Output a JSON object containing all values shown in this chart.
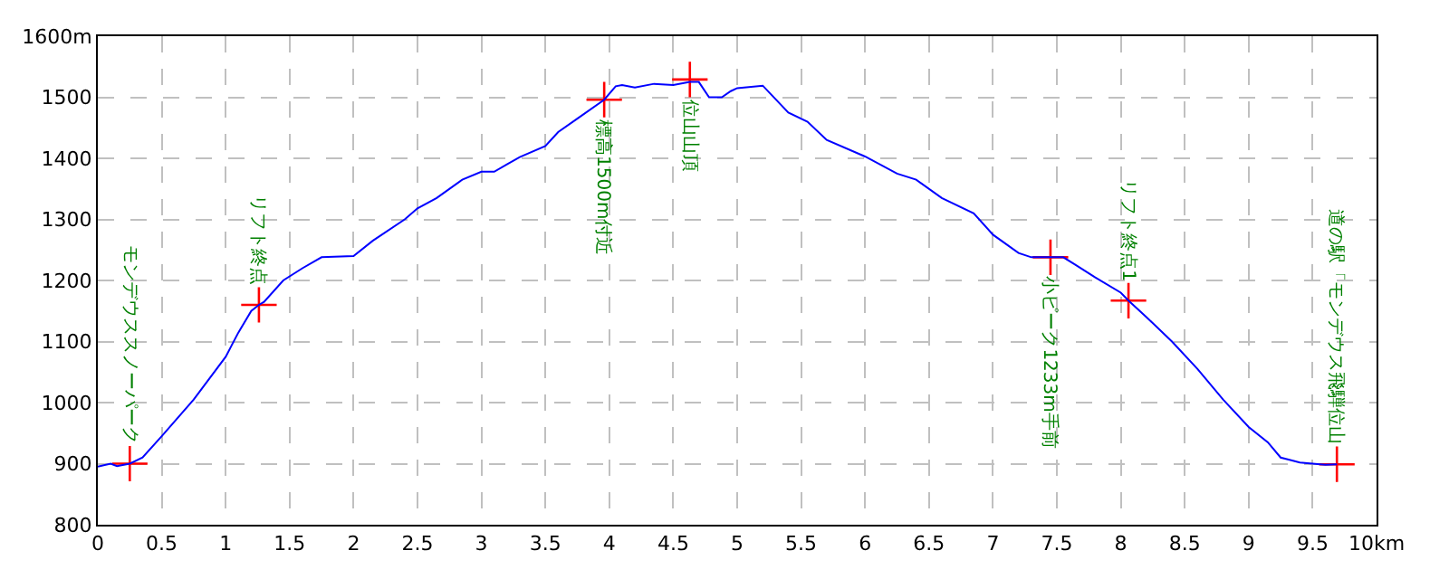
{
  "chart_data": {
    "type": "line",
    "series": [
      {
        "color": "#0000ff",
        "marker": "none",
        "x": [
          0,
          0.1,
          0.15,
          0.25,
          0.35,
          0.5,
          0.75,
          1.0,
          1.1,
          1.2,
          1.26,
          1.3,
          1.45,
          1.6,
          1.75,
          2.0,
          2.15,
          2.4,
          2.5,
          2.65,
          2.85,
          3.0,
          3.1,
          3.2,
          3.3,
          3.5,
          3.6,
          3.75,
          3.96,
          4.05,
          4.1,
          4.2,
          4.35,
          4.5,
          4.63,
          4.7,
          4.78,
          4.88,
          4.95,
          5.0,
          5.2,
          5.4,
          5.55,
          5.7,
          6.0,
          6.25,
          6.4,
          6.6,
          6.85,
          7.0,
          7.2,
          7.3,
          7.45,
          7.55,
          7.65,
          7.8,
          8.0,
          8.06,
          8.2,
          8.4,
          8.6,
          8.8,
          9.0,
          9.15,
          9.25,
          9.4,
          9.6,
          9.69
        ],
        "values": [
          895,
          900,
          896,
          900,
          910,
          945,
          1005,
          1075,
          1115,
          1150,
          1160,
          1165,
          1200,
          1220,
          1238,
          1240,
          1265,
          1300,
          1318,
          1335,
          1365,
          1378,
          1378,
          1390,
          1402,
          1420,
          1443,
          1465,
          1496,
          1518,
          1520,
          1516,
          1522,
          1520,
          1525,
          1525,
          1500,
          1500,
          1510,
          1515,
          1519,
          1475,
          1460,
          1430,
          1403,
          1375,
          1365,
          1335,
          1310,
          1275,
          1245,
          1238,
          1238,
          1238,
          1225,
          1205,
          1180,
          1167,
          1140,
          1100,
          1055,
          1005,
          960,
          935,
          910,
          902,
          898,
          899
        ]
      },
      {
        "type": "scatter",
        "color": "#ff0000",
        "marker": "cross",
        "x": [
          0.25,
          1.26,
          3.96,
          4.63,
          7.45,
          8.06,
          9.69
        ],
        "values": [
          900,
          1160,
          1496,
          1529,
          1238,
          1167,
          899
        ]
      }
    ],
    "annotations": [
      {
        "text": "モンデウススノーパーク",
        "x": 0.25,
        "y": 900
      },
      {
        "text": "リフト終点",
        "x": 1.26,
        "y": 1160
      },
      {
        "text": "標高1500m付近",
        "x": 3.96,
        "y": 1496
      },
      {
        "text": "位山山頂",
        "x": 4.63,
        "y": 1529
      },
      {
        "text": "小ピーク1233m手前",
        "x": 7.45,
        "y": 1238
      },
      {
        "text": "リフト終点1",
        "x": 8.06,
        "y": 1167
      },
      {
        "text": "道の駅「モンデウス飛騨位山",
        "x": 9.69,
        "y": 899
      }
    ],
    "xlim": [
      0,
      10
    ],
    "xticks": [
      0,
      0.5,
      1,
      1.5,
      2,
      2.5,
      3,
      3.5,
      4,
      4.5,
      5,
      5.5,
      6,
      6.5,
      7,
      7.5,
      8,
      8.5,
      9,
      9.5,
      {
        "value": 10,
        "label": "10km"
      }
    ],
    "ylim": [
      800,
      1600
    ],
    "yticks": [
      800,
      900,
      1000,
      1100,
      1200,
      1300,
      1400,
      1500,
      {
        "value": 1600,
        "label": "1600m"
      }
    ],
    "grid": true
  }
}
